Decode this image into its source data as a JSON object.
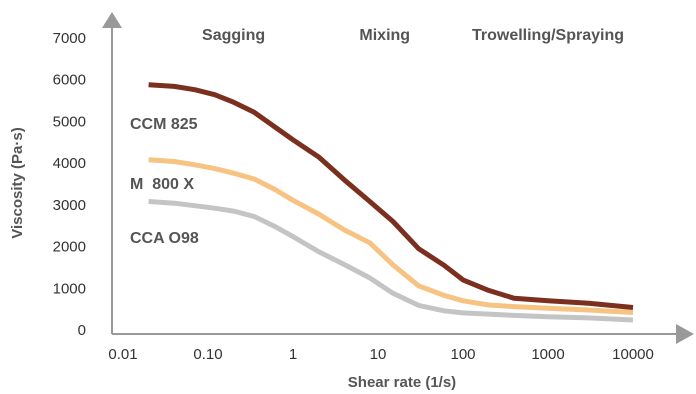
{
  "chart_data": {
    "type": "line",
    "title": "",
    "xlabel": "Shear rate (1/s)",
    "ylabel": "Viscosity (Pa·s)",
    "x_scale": "log",
    "xlim": [
      0.01,
      10000
    ],
    "ylim": [
      0,
      7000
    ],
    "x_ticks": [
      "0.01",
      "0.10",
      "1",
      "10",
      "100",
      "1000",
      "10000"
    ],
    "y_ticks": [
      "0",
      "1000",
      "2000",
      "3000",
      "4000",
      "5000",
      "6000",
      "7000"
    ],
    "grid": false,
    "legend": "labels beside curves",
    "regions": [
      {
        "label": "Sagging",
        "x_center": 0.2
      },
      {
        "label": "Mixing",
        "x_center": 12
      },
      {
        "label": "Trowelling/Spraying",
        "x_center": 1000
      }
    ],
    "x": [
      0.02,
      0.04,
      0.07,
      0.12,
      0.2,
      0.35,
      0.6,
      1,
      2,
      4,
      8,
      15,
      30,
      60,
      100,
      200,
      400,
      1000,
      3000,
      10000
    ],
    "series": [
      {
        "name": "CCM 825",
        "color": "#7b2f1e",
        "values": [
          5880,
          5840,
          5760,
          5640,
          5460,
          5220,
          4880,
          4560,
          4150,
          3600,
          3080,
          2600,
          1950,
          1550,
          1200,
          950,
          760,
          700,
          640,
          540
        ]
      },
      {
        "name": "M  800 X",
        "color": "#f6c383",
        "values": [
          4080,
          4040,
          3960,
          3870,
          3760,
          3620,
          3380,
          3110,
          2780,
          2400,
          2090,
          1560,
          1060,
          830,
          700,
          600,
          560,
          520,
          480,
          420
        ]
      },
      {
        "name": "CCA O98",
        "color": "#c4c4c4",
        "values": [
          3080,
          3040,
          2980,
          2920,
          2850,
          2720,
          2490,
          2240,
          1880,
          1570,
          1250,
          880,
          590,
          460,
          410,
          380,
          350,
          320,
          290,
          240
        ]
      }
    ]
  }
}
